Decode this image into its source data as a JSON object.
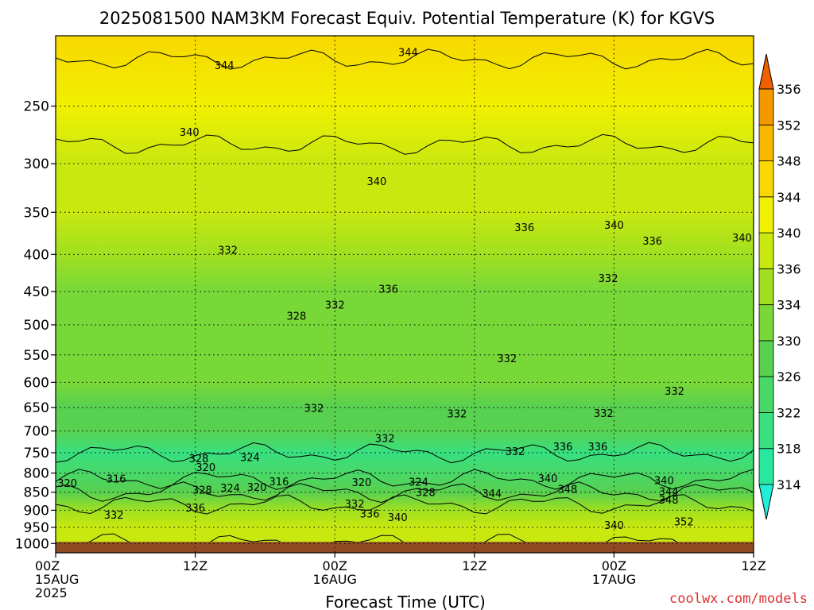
{
  "chart_data": {
    "type": "heatmap",
    "title": "2025081500 NAM3KM Forecast Equiv. Potential Temperature (K) for KGVS",
    "xlabel": "Forecast Time (UTC)",
    "ylabel": "",
    "x_range_hours": [
      0,
      60
    ],
    "x_ticks": [
      {
        "hour": 0,
        "lines": [
          "00Z",
          "15AUG",
          "2025"
        ]
      },
      {
        "hour": 12,
        "lines": [
          "12Z"
        ]
      },
      {
        "hour": 24,
        "lines": [
          "00Z",
          "16AUG"
        ]
      },
      {
        "hour": 36,
        "lines": [
          "12Z"
        ]
      },
      {
        "hour": 48,
        "lines": [
          "00Z",
          "17AUG"
        ]
      },
      {
        "hour": 60,
        "lines": [
          "12Z"
        ]
      }
    ],
    "y_scale": "log",
    "y_range_hPa": [
      1030,
      200
    ],
    "y_ticks": [
      250,
      300,
      350,
      400,
      450,
      500,
      550,
      600,
      650,
      700,
      750,
      800,
      850,
      900,
      950,
      1000
    ],
    "ground_level_hPa": 995,
    "colorbar": {
      "levels": [
        314,
        318,
        322,
        326,
        330,
        334,
        336,
        340,
        344,
        348,
        352,
        356
      ],
      "colors": [
        "#28e8a0",
        "#38e080",
        "#48d868",
        "#58d050",
        "#78d838",
        "#a0e020",
        "#c8e810",
        "#f0f000",
        "#f8d800",
        "#f8b800",
        "#f49800",
        "#f07800"
      ],
      "under_color": "#20f0d8",
      "over_color": "#f06000"
    },
    "profile_hPa": [
      1000,
      950,
      900,
      850,
      800,
      750,
      700,
      650,
      600,
      550,
      500,
      450,
      400,
      350,
      300,
      250,
      200
    ],
    "profile_theta_e_K": [
      336,
      337,
      334,
      328,
      322,
      320,
      326,
      329,
      330,
      331,
      332,
      333,
      334,
      336,
      339,
      342,
      345
    ],
    "contour_labels": [
      {
        "text": "344",
        "hour": 14.5,
        "hPa": 220
      },
      {
        "text": "344",
        "hour": 30.3,
        "hPa": 211
      },
      {
        "text": "340",
        "hour": 11.5,
        "hPa": 272
      },
      {
        "text": "340",
        "hour": 27.6,
        "hPa": 318
      },
      {
        "text": "336",
        "hour": 40.3,
        "hPa": 368
      },
      {
        "text": "340",
        "hour": 48.0,
        "hPa": 365
      },
      {
        "text": "336",
        "hour": 51.3,
        "hPa": 384
      },
      {
        "text": "340",
        "hour": 59.0,
        "hPa": 380
      },
      {
        "text": "332",
        "hour": 14.8,
        "hPa": 395
      },
      {
        "text": "336",
        "hour": 28.6,
        "hPa": 447
      },
      {
        "text": "332",
        "hour": 47.5,
        "hPa": 432
      },
      {
        "text": "332",
        "hour": 24.0,
        "hPa": 470
      },
      {
        "text": "328",
        "hour": 20.7,
        "hPa": 487
      },
      {
        "text": "332",
        "hour": 38.8,
        "hPa": 557
      },
      {
        "text": "332",
        "hour": 53.2,
        "hPa": 618
      },
      {
        "text": "332",
        "hour": 22.2,
        "hPa": 652
      },
      {
        "text": "332",
        "hour": 34.5,
        "hPa": 664
      },
      {
        "text": "332",
        "hour": 47.1,
        "hPa": 663
      },
      {
        "text": "332",
        "hour": 28.3,
        "hPa": 718
      },
      {
        "text": "332",
        "hour": 39.5,
        "hPa": 748
      },
      {
        "text": "336",
        "hour": 43.6,
        "hPa": 737
      },
      {
        "text": "336",
        "hour": 46.6,
        "hPa": 737
      },
      {
        "text": "328",
        "hour": 12.3,
        "hPa": 765
      },
      {
        "text": "324",
        "hour": 16.7,
        "hPa": 762
      },
      {
        "text": "320",
        "hour": 12.9,
        "hPa": 787
      },
      {
        "text": "316",
        "hour": 5.2,
        "hPa": 816
      },
      {
        "text": "320",
        "hour": 1.0,
        "hPa": 827
      },
      {
        "text": "316",
        "hour": 19.2,
        "hPa": 823
      },
      {
        "text": "320",
        "hour": 26.3,
        "hPa": 825
      },
      {
        "text": "324",
        "hour": 31.2,
        "hPa": 824
      },
      {
        "text": "328",
        "hour": 12.6,
        "hPa": 845
      },
      {
        "text": "324",
        "hour": 15.0,
        "hPa": 840
      },
      {
        "text": "320",
        "hour": 17.3,
        "hPa": 838
      },
      {
        "text": "328",
        "hour": 31.8,
        "hPa": 852
      },
      {
        "text": "344",
        "hour": 37.5,
        "hPa": 855
      },
      {
        "text": "340",
        "hour": 42.3,
        "hPa": 815
      },
      {
        "text": "348",
        "hour": 44.0,
        "hPa": 843
      },
      {
        "text": "340",
        "hour": 52.3,
        "hPa": 820
      },
      {
        "text": "344",
        "hour": 52.7,
        "hPa": 850
      },
      {
        "text": "348",
        "hour": 52.7,
        "hPa": 872
      },
      {
        "text": "336",
        "hour": 12.0,
        "hPa": 895
      },
      {
        "text": "332",
        "hour": 5.0,
        "hPa": 915
      },
      {
        "text": "332",
        "hour": 25.7,
        "hPa": 883
      },
      {
        "text": "336",
        "hour": 27.0,
        "hPa": 912
      },
      {
        "text": "340",
        "hour": 29.4,
        "hPa": 922
      },
      {
        "text": "340",
        "hour": 48.0,
        "hPa": 945
      },
      {
        "text": "352",
        "hour": 54.0,
        "hPa": 935
      }
    ]
  },
  "credit": "coolwx.com/models",
  "colors": {
    "ground": "#8f4a24",
    "grid": "#000000"
  }
}
